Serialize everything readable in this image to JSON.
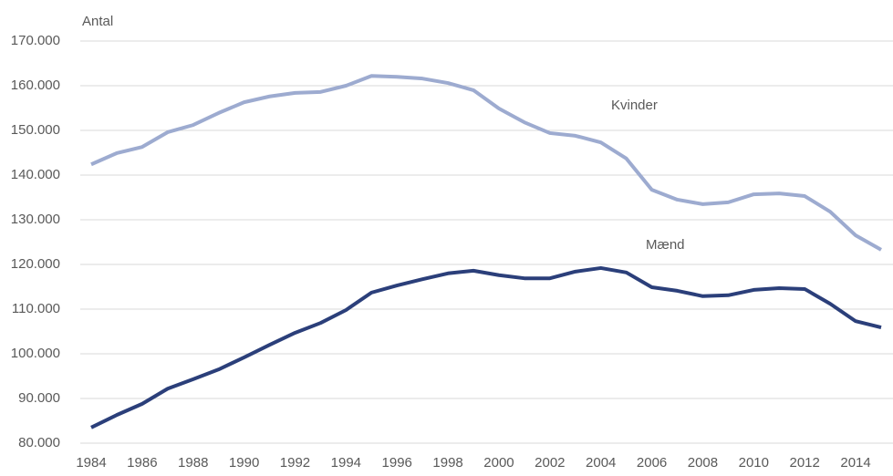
{
  "chart_data": {
    "type": "line",
    "y_label": "Antal",
    "x": [
      1984,
      1985,
      1986,
      1987,
      1988,
      1989,
      1990,
      1991,
      1992,
      1993,
      1994,
      1995,
      1996,
      1997,
      1998,
      1999,
      2000,
      2001,
      2002,
      2003,
      2004,
      2005,
      2006,
      2007,
      2008,
      2009,
      2010,
      2011,
      2012,
      2013,
      2014,
      2015
    ],
    "series": [
      {
        "name": "Kvinder",
        "color": "#9dabd0",
        "values": [
          142400,
          144900,
          146300,
          149600,
          151200,
          153900,
          156300,
          157600,
          158400,
          158600,
          160000,
          162200,
          162000,
          161600,
          160600,
          159000,
          154900,
          151800,
          149400,
          148800,
          147300,
          143700,
          136700,
          134500,
          133500,
          133900,
          135700,
          135900,
          135300,
          131800,
          126500,
          123300
        ]
      },
      {
        "name": "Mænd",
        "color": "#2b3f7a",
        "values": [
          83500,
          86300,
          88800,
          92200,
          94300,
          96500,
          99200,
          102000,
          104700,
          106900,
          109800,
          113700,
          115300,
          116700,
          118000,
          118600,
          117600,
          116900,
          116900,
          118400,
          119200,
          118200,
          114900,
          114100,
          112900,
          113100,
          114300,
          114700,
          114500,
          111200,
          107300,
          105900
        ]
      }
    ],
    "xlim": [
      1984,
      2015
    ],
    "xticks": [
      1984,
      1986,
      1988,
      1990,
      1992,
      1994,
      1996,
      1998,
      2000,
      2002,
      2004,
      2006,
      2008,
      2010,
      2012,
      2014
    ],
    "ylim": [
      80000,
      170000
    ],
    "yticks": [
      {
        "value": 80000,
        "label": "80.000"
      },
      {
        "value": 90000,
        "label": "90.000"
      },
      {
        "value": 100000,
        "label": "100.000"
      },
      {
        "value": 110000,
        "label": "110.000"
      },
      {
        "value": 120000,
        "label": "120.000"
      },
      {
        "value": 130000,
        "label": "130.000"
      },
      {
        "value": 140000,
        "label": "140.000"
      },
      {
        "value": 150000,
        "label": "150.000"
      },
      {
        "value": 160000,
        "label": "160.000"
      },
      {
        "value": 170000,
        "label": "170.000"
      }
    ],
    "grid": true
  }
}
